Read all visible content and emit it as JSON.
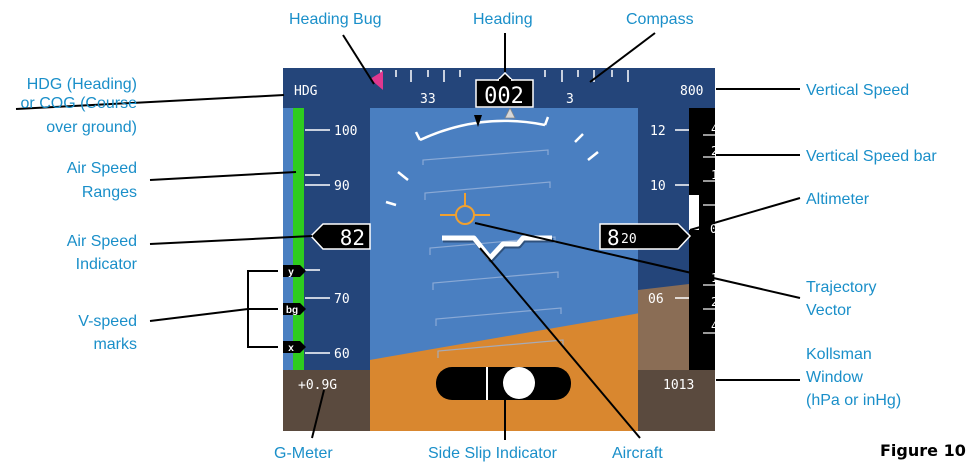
{
  "pfd": {
    "heading_mode": "HDG",
    "heading_value": "002",
    "compass_labels": [
      "33",
      "3"
    ],
    "vertical_speed_value": "800",
    "airspeed_tape_labels": [
      "100",
      "90",
      "70",
      "60"
    ],
    "airspeed_value": "82",
    "vspeed_marks": [
      "y",
      "bg",
      "x"
    ],
    "altitude_tape_labels": [
      "12",
      "10",
      "06"
    ],
    "altitude_value_large": "8",
    "altitude_value_small": "20",
    "vs_bar_labels": [
      "4",
      "2",
      "1",
      "0",
      "1",
      "2",
      "4"
    ],
    "g_meter_value": "+0.9G",
    "kollsman_value": "1013"
  },
  "callouts": {
    "heading_bug": "Heading Bug",
    "heading": "Heading",
    "compass": "Compass",
    "hdg_line1": "HDG (Heading)",
    "hdg_line2": "or COG (Course",
    "hdg_line3": "over ground)",
    "vertical_speed": "Vertical Speed",
    "vertical_speed_bar": "Vertical Speed bar",
    "airspeed_ranges_line1": "Air Speed",
    "airspeed_ranges_line2": "Ranges",
    "altimeter": "Altimeter",
    "airspeed_indicator_line1": "Air Speed",
    "airspeed_indicator_line2": "Indicator",
    "trajectory_line1": "Trajectory",
    "trajectory_line2": "Vector",
    "vspeed_line1": "V-speed",
    "vspeed_line2": "marks",
    "kollsman_line1": "Kollsman",
    "kollsman_line2": "Window",
    "kollsman_line3": "(hPa or inHg)",
    "g_meter": "G-Meter",
    "side_slip": "Side Slip Indicator",
    "aircraft": "Aircraft"
  },
  "figure_label": "Figure 10",
  "colors": {
    "sky": "#4a7fc1",
    "ground": "#d9872f",
    "panel": "#24457a",
    "dark_box": "#5a4a3e",
    "callout_text": "#1a8fc9",
    "heading_bug": "#e0388f",
    "speed_range": "#2ecc1e"
  }
}
